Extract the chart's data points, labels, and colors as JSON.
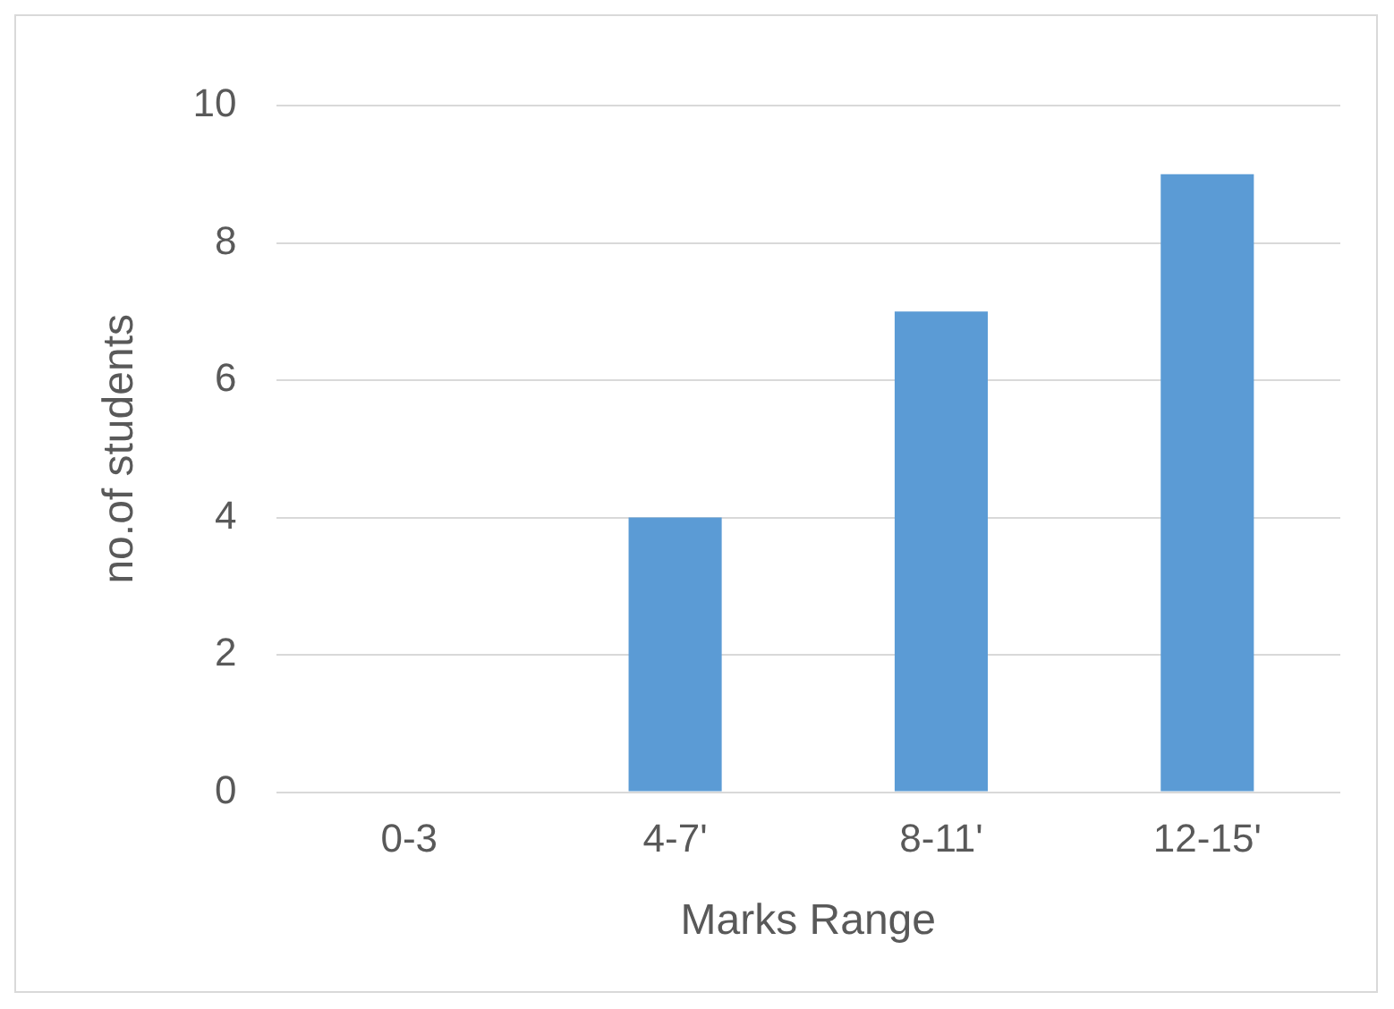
{
  "chart_data": {
    "type": "bar",
    "xlabel": "Marks Range",
    "ylabel": "no.of students",
    "categories": [
      "0-3",
      "4-7'",
      "8-11'",
      "12-15'"
    ],
    "values": [
      0,
      4,
      7,
      9
    ],
    "color": "#5b9bd5",
    "ylim": [
      0,
      10
    ],
    "yticks": [
      0,
      2,
      4,
      6,
      8,
      10
    ],
    "grid": "y",
    "legend": false
  }
}
